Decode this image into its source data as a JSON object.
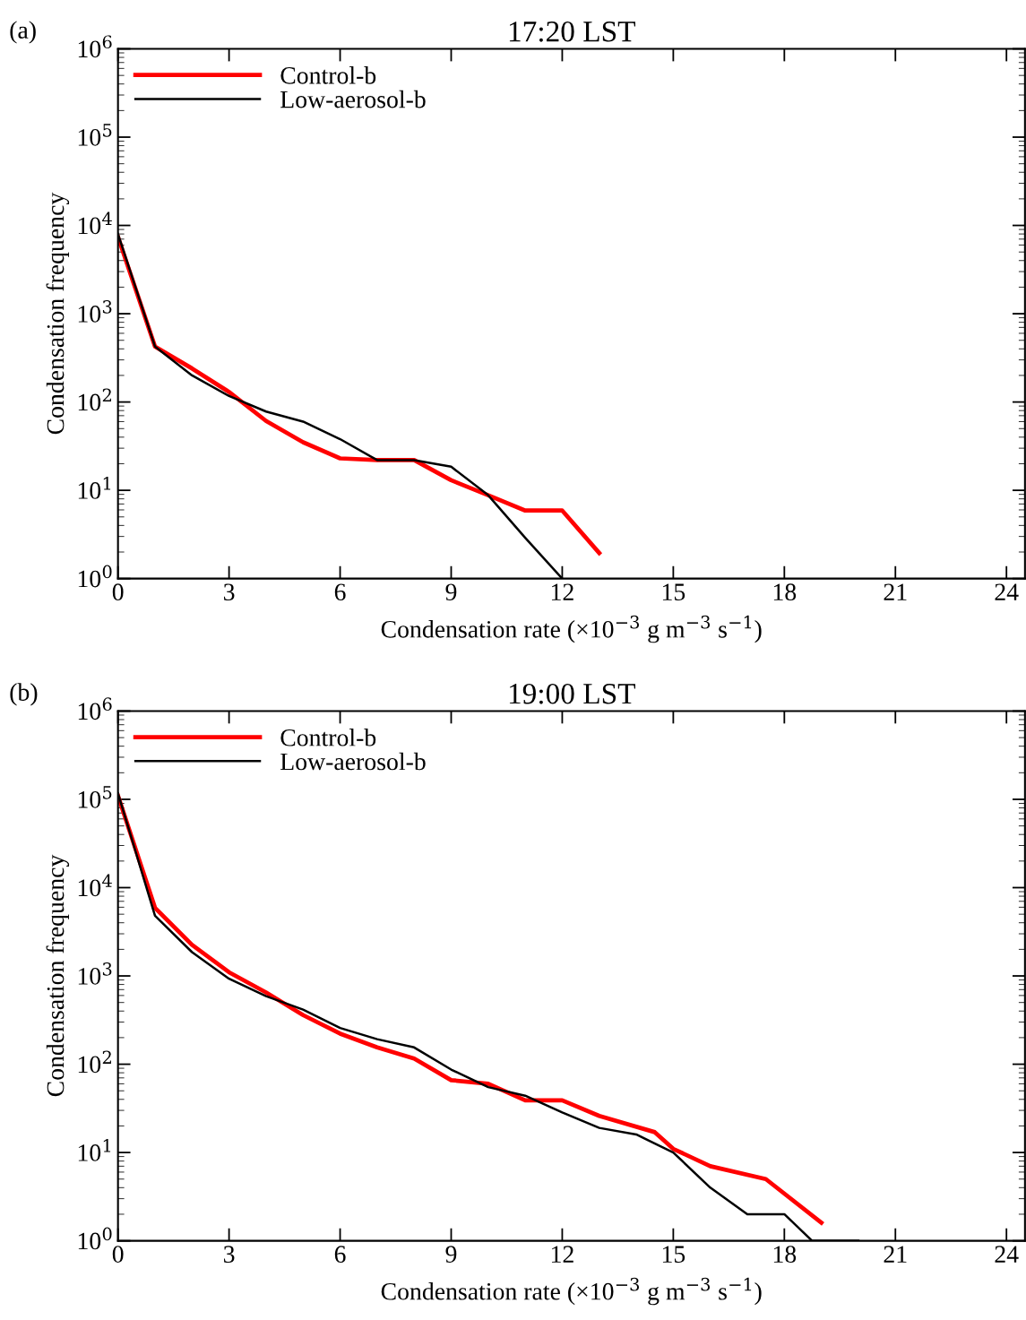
{
  "chart_data": [
    {
      "type": "line",
      "title": "17:20 LST",
      "xlabel": "Condensation rate (×10$^{−3}$ g m$^{−3}$ s$^{−1}$)",
      "ylabel": "Condensation frequency",
      "annotations": [
        "(a)"
      ],
      "log": "y",
      "legend": "top left",
      "grid": false,
      "xlim": [
        0,
        24.5
      ],
      "xticks": [
        0,
        3,
        6,
        9,
        12,
        15,
        18,
        21,
        24
      ],
      "ylim": [
        1,
        1000000
      ],
      "yticks": [
        {
          "value": 1,
          "label": "10$^{0}$"
        },
        {
          "value": 10,
          "label": "10$^{1}$"
        },
        {
          "value": 100,
          "label": "10$^{2}$"
        },
        {
          "value": 1000,
          "label": "10$^{3}$"
        },
        {
          "value": 10000,
          "label": "10$^{4}$"
        },
        {
          "value": 100000,
          "label": "10$^{5}$"
        },
        {
          "value": 1000000,
          "label": "10$^{6}$"
        }
      ],
      "series": [
        {
          "name": "Control-b",
          "color": "#ff0000",
          "x": [
            0,
            1,
            2,
            3,
            4,
            5,
            6,
            7,
            8,
            9,
            10,
            11,
            12,
            13
          ],
          "values": [
            7400,
            425,
            240,
            130,
            61,
            35,
            23,
            22,
            22,
            13,
            8.8,
            5.9,
            5.9,
            1.95
          ]
        },
        {
          "name": "Low-aerosol-b",
          "color": "#000000",
          "x": [
            0,
            1,
            2,
            3,
            4,
            5,
            6,
            7,
            8,
            9,
            10,
            11,
            12
          ],
          "values": [
            8000,
            425,
            200,
            117,
            78,
            60,
            38,
            22,
            22,
            18.5,
            8.8,
            2.9,
            1
          ]
        }
      ]
    },
    {
      "type": "line",
      "title": "19:00 LST",
      "xlabel": "Condensation rate (×10$^{−3}$ g m$^{−3}$ s$^{−1}$)",
      "ylabel": "Condensation frequency",
      "annotations": [
        "(b)"
      ],
      "log": "y",
      "legend": "top left",
      "grid": false,
      "xlim": [
        0,
        24.5
      ],
      "xticks": [
        0,
        3,
        6,
        9,
        12,
        15,
        18,
        21,
        24
      ],
      "ylim": [
        1,
        1000000
      ],
      "yticks": [
        {
          "value": 1,
          "label": "10$^{0}$"
        },
        {
          "value": 10,
          "label": "10$^{1}$"
        },
        {
          "value": 100,
          "label": "10$^{2}$"
        },
        {
          "value": 1000,
          "label": "10$^{3}$"
        },
        {
          "value": 10000,
          "label": "10$^{4}$"
        },
        {
          "value": 100000,
          "label": "10$^{5}$"
        },
        {
          "value": 1000000,
          "label": "10$^{6}$"
        }
      ],
      "series": [
        {
          "name": "Control-b",
          "color": "#ff0000",
          "x": [
            0,
            1,
            2,
            3,
            4,
            5,
            6,
            7,
            8,
            9,
            10,
            11,
            12,
            13,
            14.5,
            15,
            16,
            17.5,
            19
          ],
          "values": [
            110000,
            5900,
            2250,
            1100,
            650,
            360,
            222,
            155,
            116,
            66,
            60,
            39,
            39,
            26,
            17,
            11,
            7,
            5,
            1.6
          ]
        },
        {
          "name": "Low-aerosol-b",
          "color": "#000000",
          "x": [
            0,
            1,
            2,
            3,
            4,
            5,
            6,
            7,
            8,
            9,
            10,
            11,
            12,
            13,
            14,
            15,
            16,
            17,
            18,
            18.75,
            20
          ],
          "values": [
            117000,
            4800,
            1860,
            930,
            590,
            415,
            257,
            192,
            155,
            87,
            55,
            44,
            28.5,
            19,
            16,
            10,
            4,
            2,
            2,
            1,
            1
          ]
        }
      ]
    }
  ]
}
